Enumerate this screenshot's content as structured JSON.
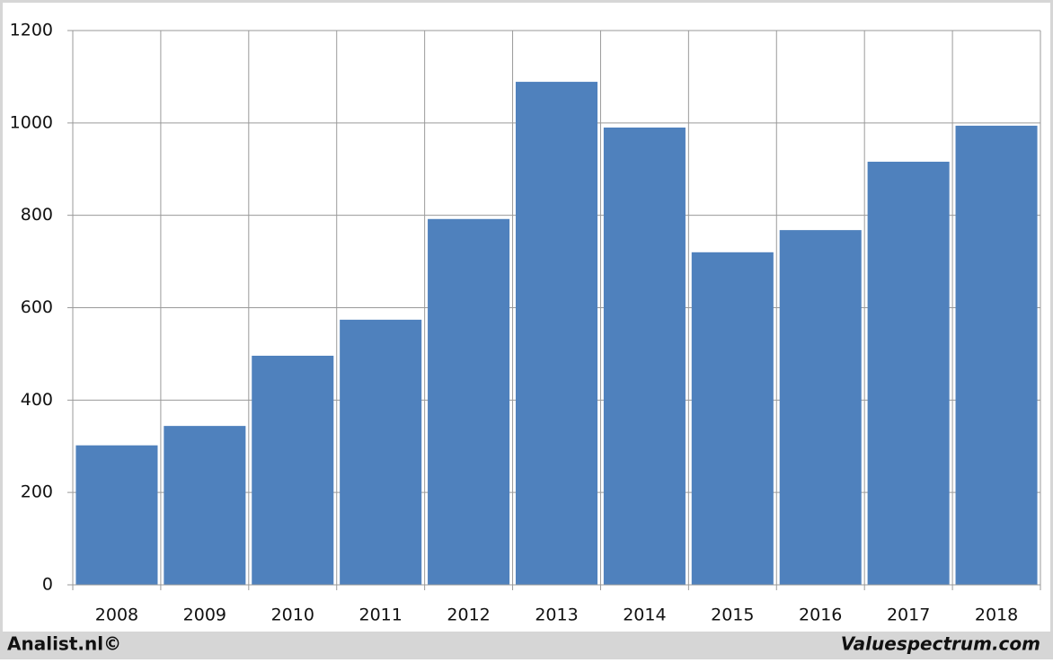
{
  "chart_data": {
    "type": "bar",
    "categories": [
      "2008",
      "2009",
      "2010",
      "2011",
      "2012",
      "2013",
      "2014",
      "2015",
      "2016",
      "2017",
      "2018"
    ],
    "values": [
      302,
      344,
      496,
      574,
      792,
      1089,
      990,
      720,
      768,
      916,
      994
    ],
    "color": "#4f81bd",
    "ylim": [
      0,
      1200
    ],
    "yticks": [
      0,
      200,
      400,
      600,
      800,
      1000,
      1200
    ],
    "grid": true
  },
  "footer": {
    "left": "Analist.nl©",
    "right": "Valuespectrum.com"
  }
}
